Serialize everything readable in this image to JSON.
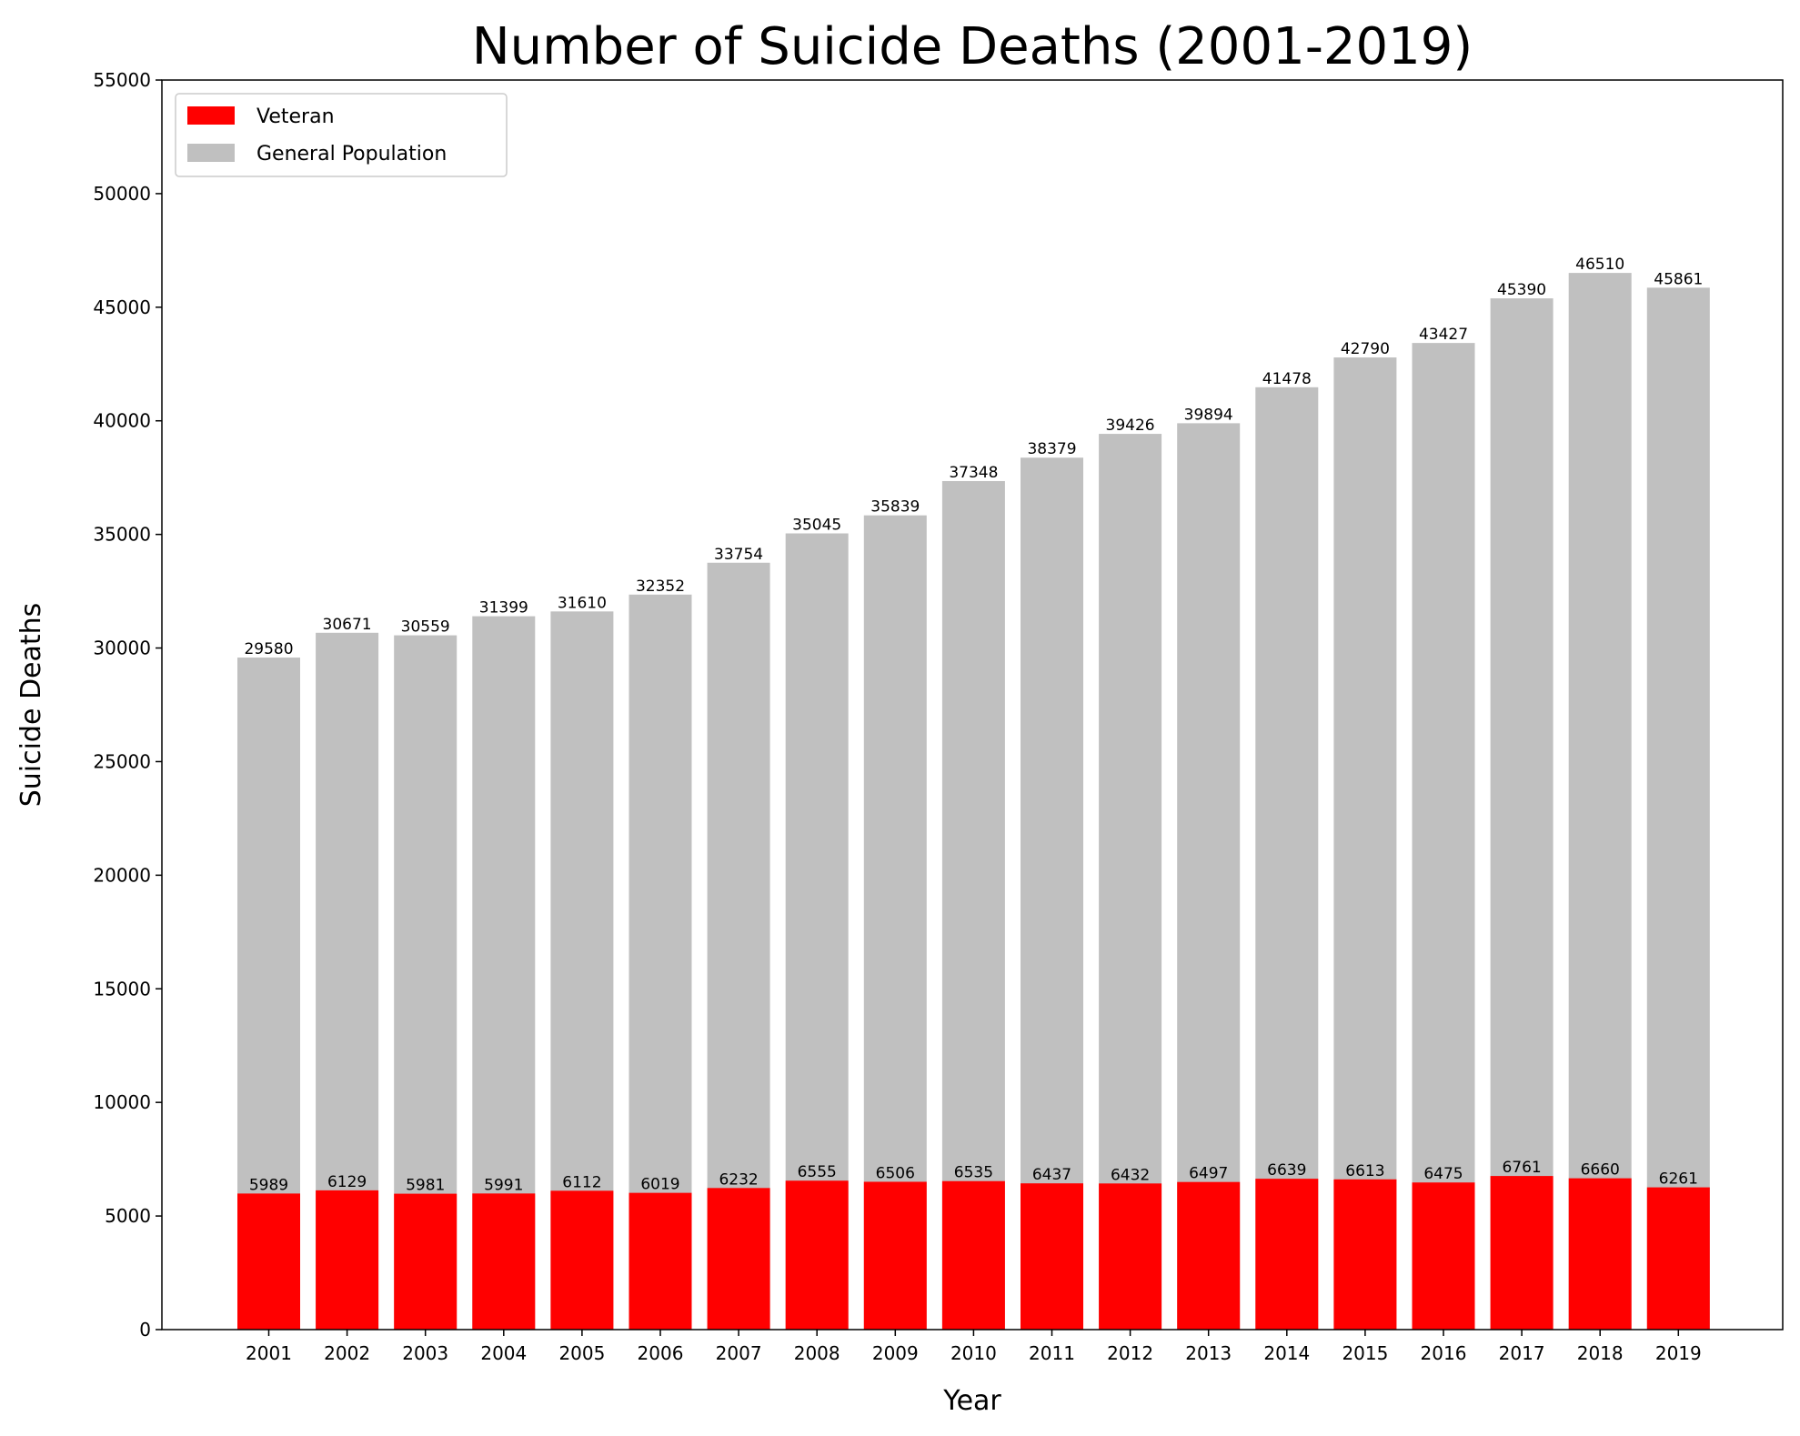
{
  "chart_data": {
    "type": "bar",
    "stacked": "overlaid",
    "title": "Number of Suicide Deaths (2001-2019)",
    "xlabel": "Year",
    "ylabel": "Suicide Deaths",
    "ylim": [
      0,
      55000
    ],
    "yticks": [
      0,
      5000,
      10000,
      15000,
      20000,
      25000,
      30000,
      35000,
      40000,
      45000,
      50000,
      55000
    ],
    "grid": false,
    "legend_position": "top-left",
    "categories": [
      "2001",
      "2002",
      "2003",
      "2004",
      "2005",
      "2006",
      "2007",
      "2008",
      "2009",
      "2010",
      "2011",
      "2012",
      "2013",
      "2014",
      "2015",
      "2016",
      "2017",
      "2018",
      "2019"
    ],
    "series": [
      {
        "name": "Veteran",
        "color": "#ff0000",
        "values": [
          5989,
          6129,
          5981,
          5991,
          6112,
          6019,
          6232,
          6555,
          6506,
          6535,
          6437,
          6432,
          6497,
          6639,
          6613,
          6475,
          6761,
          6660,
          6261
        ]
      },
      {
        "name": "General Population",
        "color": "#c0c0c0",
        "values": [
          29580,
          30671,
          30559,
          31399,
          31610,
          32352,
          33754,
          35045,
          35839,
          37348,
          38379,
          39426,
          39894,
          41478,
          42790,
          43427,
          45390,
          46510,
          45861
        ]
      }
    ]
  }
}
